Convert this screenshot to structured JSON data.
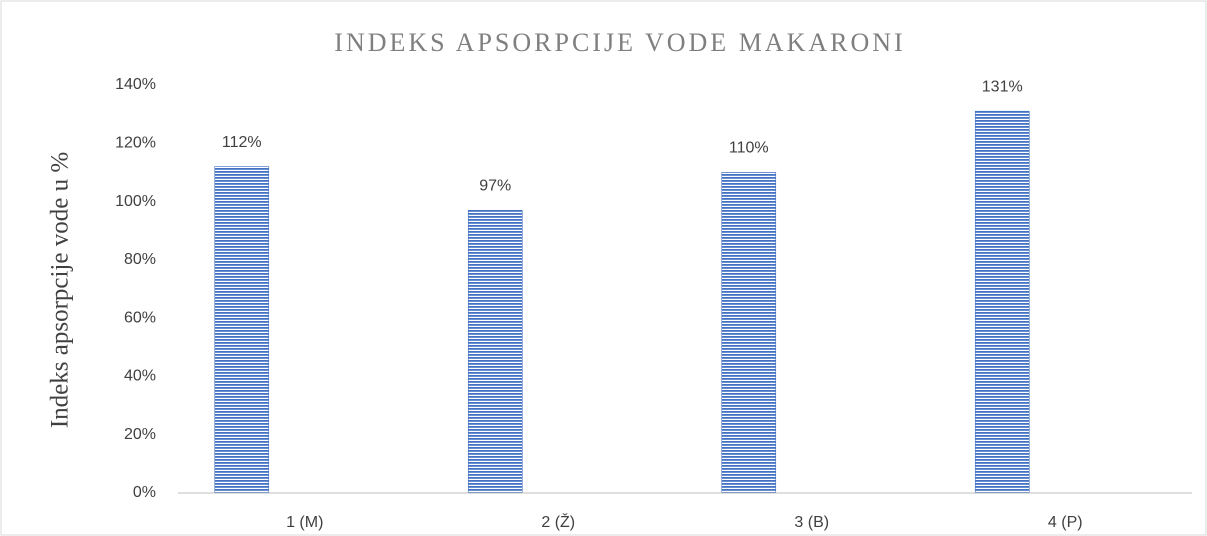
{
  "chart_data": {
    "type": "bar",
    "title": "INDEKS APSORPCIJE VODE MAKARONI",
    "y_label": "Indeks apsorpcije vode u %",
    "categories": [
      "1 (M)",
      "2 (Ž)",
      "3 (B)",
      "4 (P)"
    ],
    "values": [
      112,
      97,
      110,
      131
    ],
    "value_labels": [
      "112%",
      "97%",
      "110%",
      "131%"
    ],
    "color": "#4472c4",
    "ylim": [
      0,
      140
    ],
    "yticks": [
      {
        "value": 0,
        "label": "0%"
      },
      {
        "value": 20,
        "label": "20%"
      },
      {
        "value": 40,
        "label": "40%"
      },
      {
        "value": 60,
        "label": "60%"
      },
      {
        "value": 80,
        "label": "80%"
      },
      {
        "value": 100,
        "label": "100%"
      },
      {
        "value": 120,
        "label": "120%"
      },
      {
        "value": 140,
        "label": "140%"
      }
    ],
    "grid": false
  }
}
